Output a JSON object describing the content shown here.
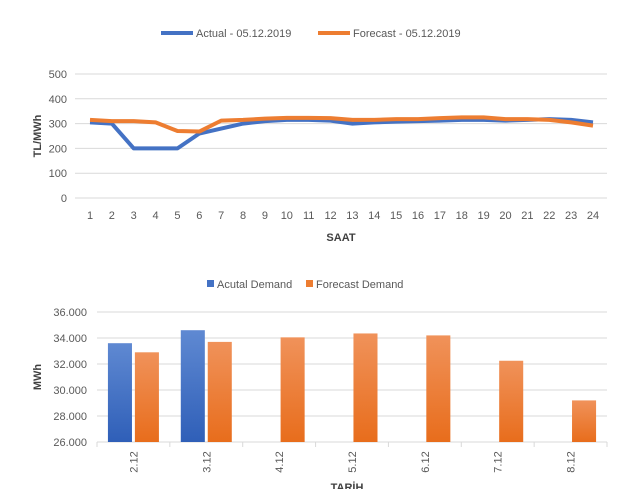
{
  "chart_data": [
    {
      "type": "line",
      "title": "",
      "xlabel": "SAAT",
      "ylabel": "TL/MWh",
      "ylim": [
        0,
        500
      ],
      "yticks": [
        "0",
        "100",
        "200",
        "300",
        "400",
        "500"
      ],
      "grid": true,
      "legend_position": "top",
      "x": [
        1,
        2,
        3,
        4,
        5,
        6,
        7,
        8,
        9,
        10,
        11,
        12,
        13,
        14,
        15,
        16,
        17,
        18,
        19,
        20,
        21,
        22,
        23,
        24
      ],
      "series": [
        {
          "name": "Actual - 05.12.2019",
          "color": "#4472c4",
          "values": [
            305,
            300,
            200,
            200,
            200,
            260,
            280,
            300,
            310,
            315,
            315,
            312,
            300,
            305,
            308,
            310,
            312,
            315,
            315,
            312,
            315,
            318,
            315,
            305
          ]
        },
        {
          "name": "Forecast - 05.12.2019",
          "color": "#ed7d31",
          "values": [
            315,
            310,
            310,
            305,
            270,
            268,
            312,
            315,
            320,
            323,
            323,
            322,
            315,
            315,
            318,
            318,
            322,
            325,
            325,
            318,
            318,
            315,
            305,
            292
          ]
        }
      ]
    },
    {
      "type": "bar",
      "title": "",
      "xlabel": "TARİH",
      "ylabel": "MWh",
      "ylim": [
        26000,
        36000
      ],
      "yticks": [
        "26.000",
        "28.000",
        "30.000",
        "32.000",
        "34.000",
        "36.000"
      ],
      "grid": true,
      "legend_position": "top",
      "categories": [
        "2.12",
        "3.12",
        "4.12",
        "5.12",
        "6.12",
        "7.12",
        "8.12"
      ],
      "series": [
        {
          "name": "Acutal Demand",
          "color": "#4472c4",
          "values": [
            33600,
            34600,
            null,
            null,
            null,
            null,
            null
          ]
        },
        {
          "name": "Forecast Demand",
          "color": "#ed7d31",
          "values": [
            32900,
            33700,
            34050,
            34350,
            34200,
            32250,
            29200
          ]
        }
      ]
    }
  ]
}
